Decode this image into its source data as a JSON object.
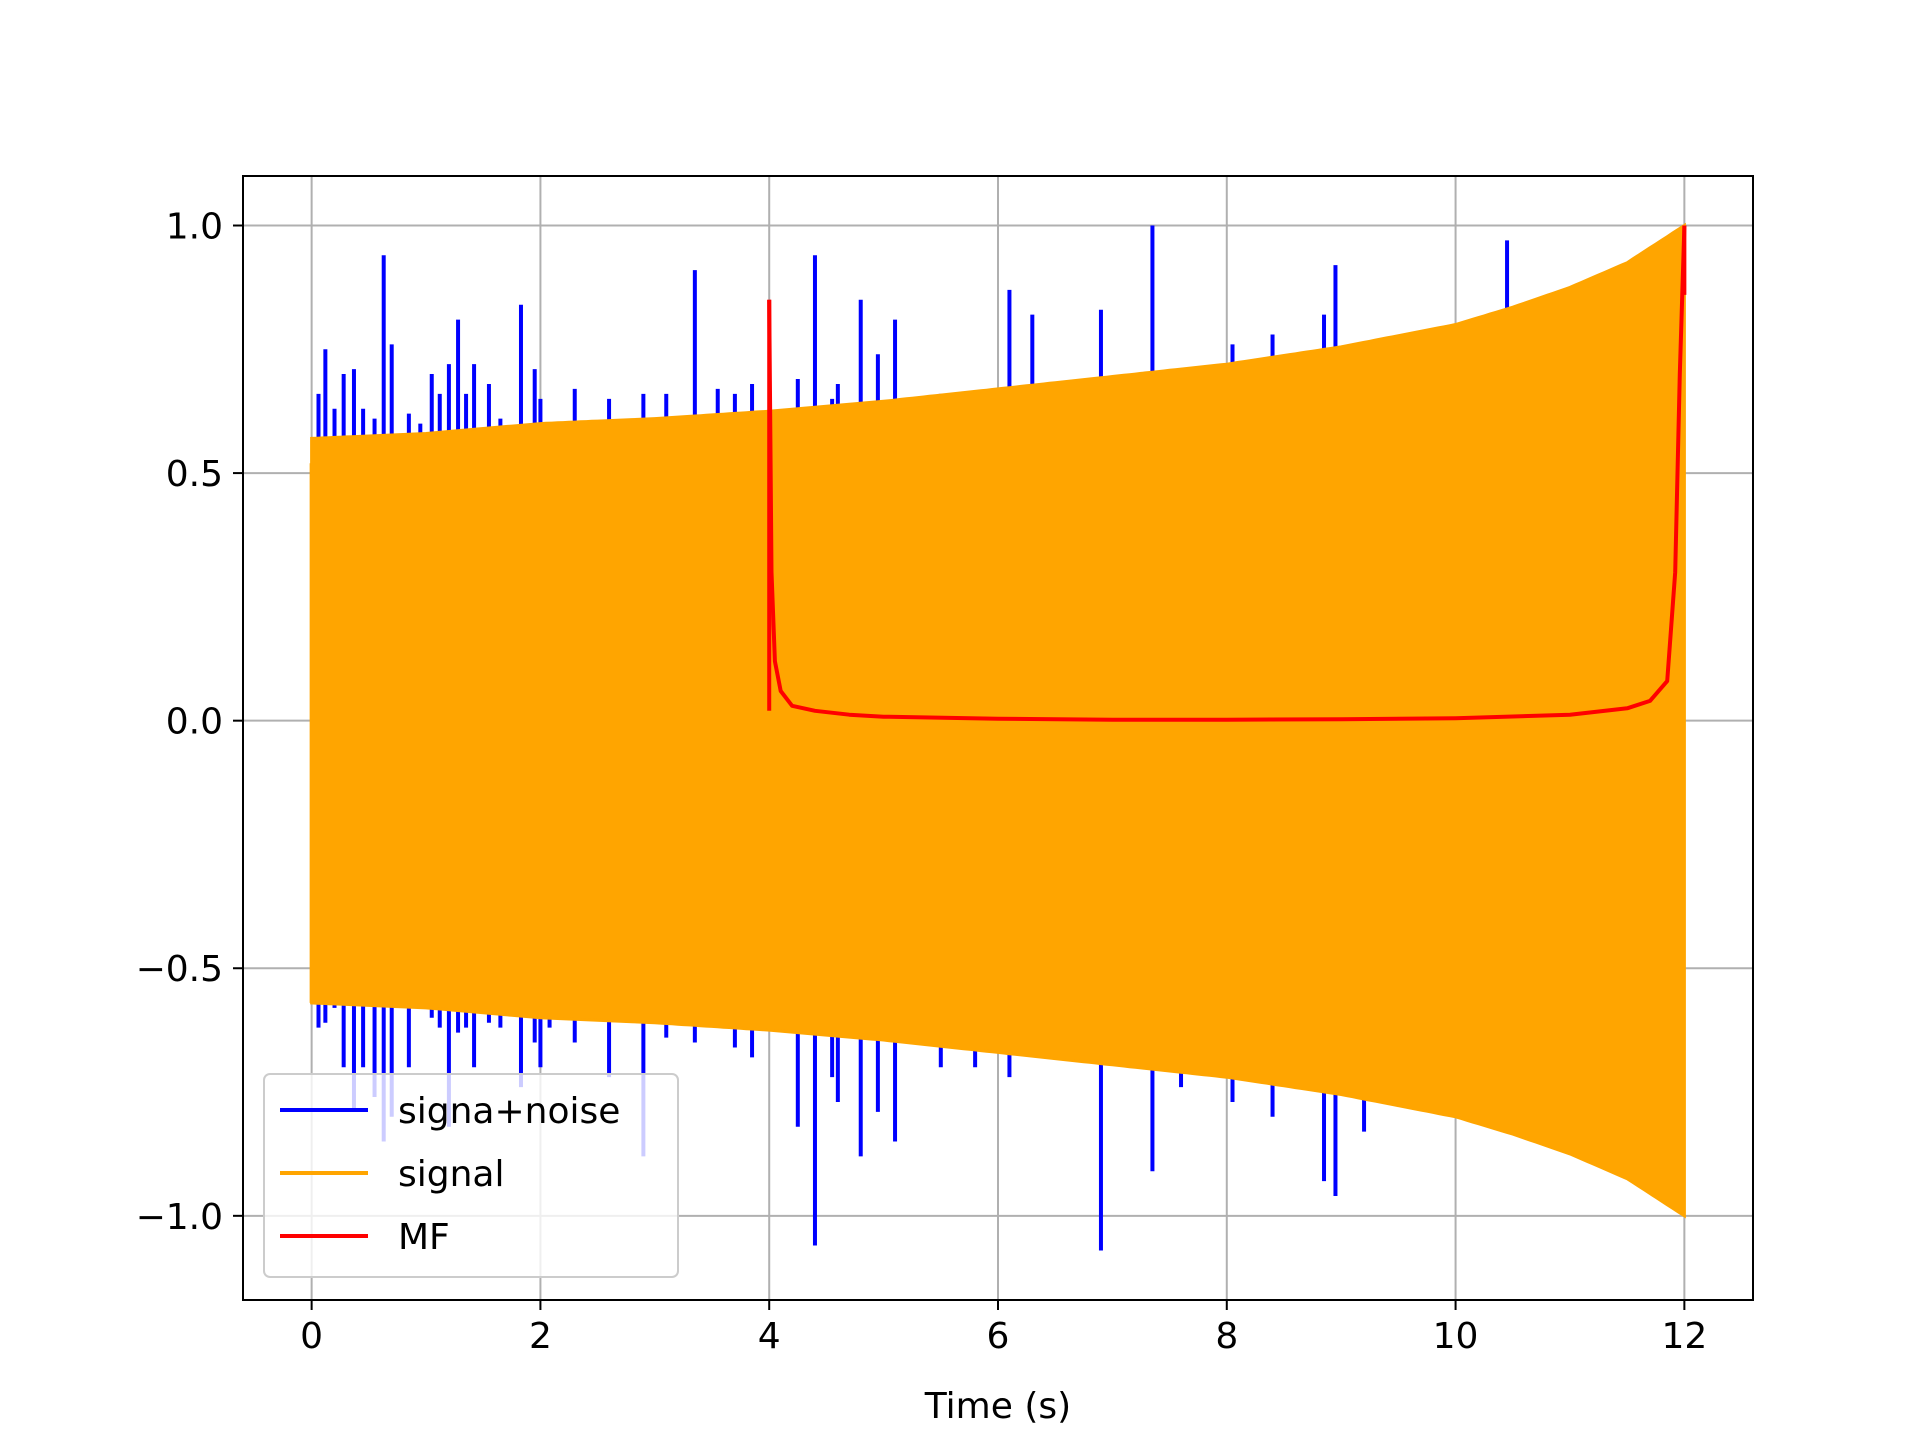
{
  "chart_data": {
    "type": "line",
    "title": "",
    "xlabel": "Time (s)",
    "ylabel": "",
    "xlim": [
      -0.6,
      12.6
    ],
    "ylim": [
      -1.17,
      1.1
    ],
    "x_ticks": [
      0,
      2,
      4,
      6,
      8,
      10,
      12
    ],
    "x_tick_labels": [
      "0",
      "2",
      "4",
      "6",
      "8",
      "10",
      "12"
    ],
    "y_ticks": [
      1.0,
      0.5,
      0.0,
      -0.5,
      -1.0
    ],
    "y_tick_labels": [
      "1.0",
      "0.5",
      "0.0",
      "−0.5",
      "−1.0"
    ],
    "grid": true,
    "legend_position": "lower-left",
    "colors": {
      "signal_plus_noise": "#0000ff",
      "signal": "#ffa500",
      "mf": "#ff0000",
      "grid": "#b0b0b0",
      "axes": "#000000"
    },
    "series": [
      {
        "name": "signa+noise",
        "color": "#0000ff",
        "description_values": "dense noisy oscillation between 0 and 12 s; spikes up to about 1.0 and down to about -1.06",
        "spikes": [
          [
            0.06,
            0.66,
            -0.62
          ],
          [
            0.12,
            0.75,
            -0.61
          ],
          [
            0.2,
            0.63,
            -0.58
          ],
          [
            0.28,
            0.7,
            -0.7
          ],
          [
            0.37,
            0.71,
            -0.79
          ],
          [
            0.45,
            0.63,
            -0.7
          ],
          [
            0.55,
            0.61,
            -0.76
          ],
          [
            0.63,
            0.94,
            -0.85
          ],
          [
            0.7,
            0.76,
            -0.8
          ],
          [
            0.85,
            0.62,
            -0.7
          ],
          [
            0.95,
            0.6,
            -0.58
          ],
          [
            1.05,
            0.7,
            -0.6
          ],
          [
            1.12,
            0.66,
            -0.62
          ],
          [
            1.2,
            0.72,
            -0.82
          ],
          [
            1.28,
            0.81,
            -0.63
          ],
          [
            1.35,
            0.66,
            -0.62
          ],
          [
            1.42,
            0.72,
            -0.7
          ],
          [
            1.55,
            0.68,
            -0.61
          ],
          [
            1.65,
            0.61,
            -0.62
          ],
          [
            1.83,
            0.84,
            -0.74
          ],
          [
            1.95,
            0.71,
            -0.65
          ],
          [
            2.0,
            0.65,
            -0.7
          ],
          [
            2.08,
            0.6,
            -0.62
          ],
          [
            2.3,
            0.67,
            -0.65
          ],
          [
            2.6,
            0.65,
            -0.72
          ],
          [
            2.9,
            0.66,
            -0.88
          ],
          [
            3.1,
            0.66,
            -0.64
          ],
          [
            3.35,
            0.91,
            -0.65
          ],
          [
            3.55,
            0.67,
            -0.62
          ],
          [
            3.7,
            0.66,
            -0.66
          ],
          [
            3.85,
            0.68,
            -0.68
          ],
          [
            4.25,
            0.69,
            -0.82
          ],
          [
            4.4,
            0.94,
            -1.06
          ],
          [
            4.55,
            0.65,
            -0.72
          ],
          [
            4.6,
            0.68,
            -0.77
          ],
          [
            4.8,
            0.85,
            -0.88
          ],
          [
            4.95,
            0.74,
            -0.79
          ],
          [
            5.1,
            0.81,
            -0.85
          ],
          [
            5.5,
            0.66,
            -0.7
          ],
          [
            5.8,
            0.66,
            -0.7
          ],
          [
            6.1,
            0.87,
            -0.72
          ],
          [
            6.3,
            0.82,
            -0.65
          ],
          [
            6.9,
            0.83,
            -1.07
          ],
          [
            7.35,
            1.0,
            -0.91
          ],
          [
            7.6,
            0.7,
            -0.74
          ],
          [
            8.05,
            0.76,
            -0.77
          ],
          [
            8.4,
            0.78,
            -0.8
          ],
          [
            8.85,
            0.82,
            -0.93
          ],
          [
            8.95,
            0.92,
            -0.96
          ],
          [
            9.2,
            0.74,
            -0.83
          ],
          [
            10.45,
            0.97,
            -0.83
          ]
        ]
      },
      {
        "name": "signal",
        "color": "#ffa500",
        "description_values": "oscillating chirp filling an envelope; amplitude grows from about 0.57 at t=0 to about 1.0 at t=12",
        "envelope": {
          "x": [
            0,
            1,
            2,
            3,
            4,
            5,
            6,
            7,
            8,
            9,
            10,
            10.5,
            11,
            11.5,
            12
          ],
          "amplitude": [
            0.57,
            0.58,
            0.6,
            0.61,
            0.625,
            0.645,
            0.67,
            0.695,
            0.72,
            0.755,
            0.8,
            0.835,
            0.875,
            0.925,
            1.0
          ]
        }
      },
      {
        "name": "MF",
        "color": "#ff0000",
        "description_values": "matched filter output from 4 s to 12 s; peak 0.85 at t=4, decays to about 0 then rises to peak 1.0 at t=12",
        "x": [
          4.0,
          4.02,
          4.05,
          4.1,
          4.2,
          4.4,
          4.7,
          5.0,
          6.0,
          7.0,
          8.0,
          9.0,
          10.0,
          11.0,
          11.5,
          11.7,
          11.85,
          11.92,
          11.96,
          12.0
        ],
        "y": [
          0.85,
          0.3,
          0.12,
          0.06,
          0.03,
          0.02,
          0.012,
          0.008,
          0.004,
          0.002,
          0.002,
          0.003,
          0.005,
          0.012,
          0.025,
          0.04,
          0.08,
          0.3,
          0.7,
          1.0
        ]
      }
    ]
  }
}
